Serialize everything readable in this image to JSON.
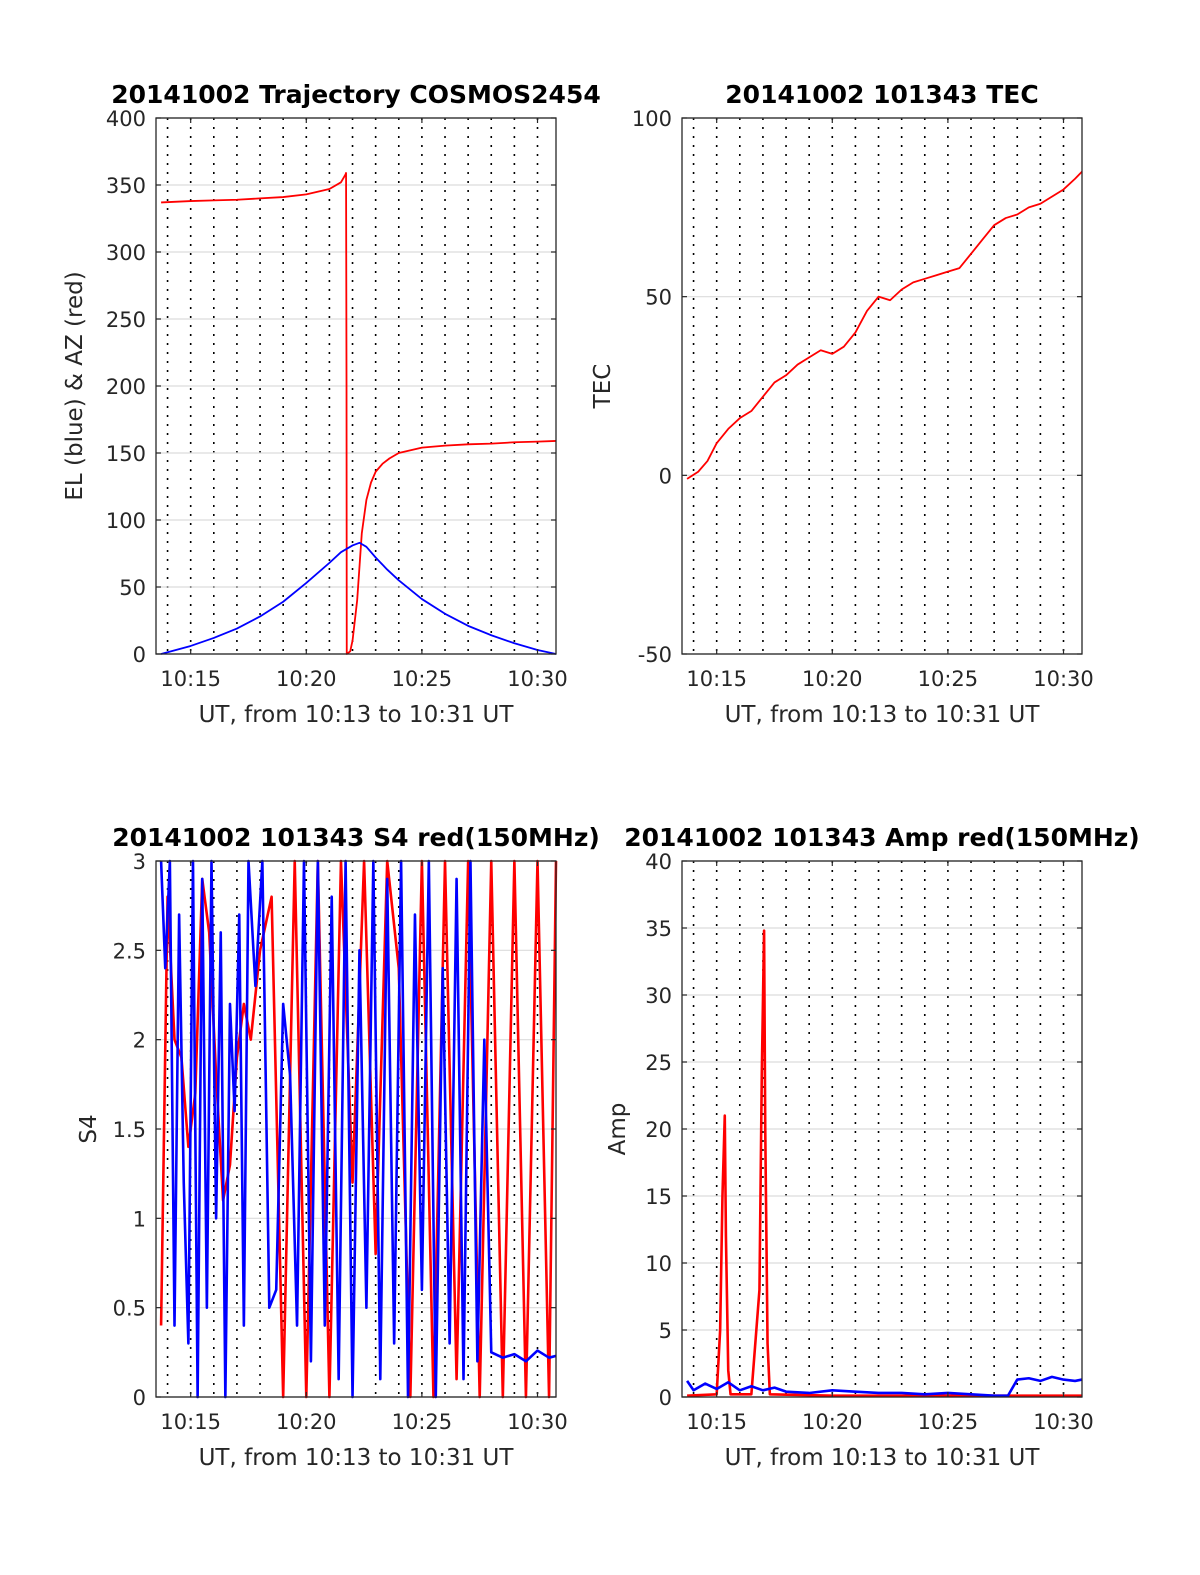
{
  "chart_data": [
    {
      "id": "trajectory",
      "type": "line",
      "title": "20141002 Trajectory COSMOS2454",
      "xlabel": "UT, from 10:13 to 10:31 UT",
      "ylabel": "EL (blue) & AZ (red)",
      "x_unit": "minutes after 10:00 UT",
      "xlim": [
        13.5,
        30.8
      ],
      "ylim": [
        0,
        400
      ],
      "xticks": [
        15,
        20,
        25,
        30
      ],
      "xtick_labels": [
        "10:15",
        "10:20",
        "10:25",
        "10:30"
      ],
      "yticks": [
        0,
        50,
        100,
        150,
        200,
        250,
        300,
        350,
        400
      ],
      "ytick_labels": [
        "0",
        "50",
        "100",
        "150",
        "200",
        "250",
        "300",
        "350",
        "400"
      ],
      "grid": true,
      "series": [
        {
          "name": "AZ",
          "color": "#ff0000",
          "x": [
            13.72,
            15,
            16,
            17,
            18,
            19,
            20,
            21,
            21.5,
            21.7,
            21.72,
            21.74,
            21.75,
            21.9,
            22.0,
            22.2,
            22.4,
            22.6,
            22.8,
            23.0,
            23.3,
            23.6,
            24,
            25,
            26,
            27,
            28,
            29,
            30,
            30.8
          ],
          "y": [
            337,
            338,
            338.5,
            339,
            340,
            341,
            343,
            347,
            352,
            358,
            359,
            200,
            0,
            2,
            10,
            40,
            90,
            115,
            128,
            136,
            142,
            146,
            150,
            154,
            155.5,
            156.5,
            157,
            158,
            158.5,
            159
          ]
        },
        {
          "name": "EL",
          "color": "#0000ff",
          "x": [
            13.72,
            15,
            16,
            17,
            18,
            19,
            20,
            21,
            21.5,
            22.0,
            22.3,
            22.6,
            23,
            23.5,
            24,
            25,
            26,
            27,
            28,
            29,
            30,
            30.8
          ],
          "y": [
            0,
            6,
            12,
            19,
            28,
            39,
            53,
            68,
            76,
            81,
            83,
            80,
            72,
            63,
            55,
            41,
            30,
            21,
            14,
            8,
            3,
            0
          ]
        }
      ]
    },
    {
      "id": "tec",
      "type": "line",
      "title": "20141002 101343 TEC",
      "xlabel": "UT, from 10:13 to 10:31 UT",
      "ylabel": "TEC",
      "x_unit": "minutes after 10:00 UT",
      "xlim": [
        13.5,
        30.8
      ],
      "ylim": [
        -50,
        100
      ],
      "xticks": [
        15,
        20,
        25,
        30
      ],
      "xtick_labels": [
        "10:15",
        "10:20",
        "10:25",
        "10:30"
      ],
      "yticks": [
        -50,
        0,
        50,
        100
      ],
      "ytick_labels": [
        "-50",
        "0",
        "50",
        "100"
      ],
      "grid": true,
      "series": [
        {
          "name": "TEC",
          "color": "#ff0000",
          "x": [
            13.72,
            14.2,
            14.6,
            15.0,
            15.5,
            16.0,
            16.5,
            17.0,
            17.5,
            18.0,
            18.5,
            19.0,
            19.5,
            20.0,
            20.5,
            21.0,
            21.5,
            22.0,
            22.5,
            23.0,
            23.5,
            24.0,
            24.5,
            25.0,
            25.5,
            26.0,
            26.5,
            27.0,
            27.5,
            28.0,
            28.5,
            29.0,
            29.5,
            30.0,
            30.5,
            30.8
          ],
          "y": [
            -1,
            1,
            4,
            9,
            13,
            16,
            18,
            22,
            26,
            28,
            31,
            33,
            35,
            34,
            36,
            40,
            46,
            50,
            49,
            52,
            54,
            55,
            56,
            57,
            58,
            62,
            66,
            70,
            72,
            73,
            75,
            76,
            78,
            80,
            83,
            85
          ]
        }
      ]
    },
    {
      "id": "s4",
      "type": "line",
      "title": "20141002 101343 S4 red(150MHz)",
      "xlabel": "UT, from 10:13 to 10:31 UT",
      "ylabel": "S4",
      "x_unit": "minutes after 10:00 UT",
      "xlim": [
        13.5,
        30.8
      ],
      "ylim": [
        0,
        3
      ],
      "xticks": [
        15,
        20,
        25,
        30
      ],
      "xtick_labels": [
        "10:15",
        "10:20",
        "10:25",
        "10:30"
      ],
      "yticks": [
        0,
        0.5,
        1,
        1.5,
        2,
        2.5,
        3
      ],
      "ytick_labels": [
        "0",
        "0.5",
        "1",
        "1.5",
        "2",
        "2.5",
        "3"
      ],
      "grid": true,
      "series": [
        {
          "name": "red (150MHz)",
          "color": "#ff0000",
          "x": [
            13.72,
            14.0,
            14.3,
            14.6,
            14.9,
            15.2,
            15.5,
            15.8,
            16.1,
            16.4,
            16.7,
            17.0,
            17.3,
            17.6,
            18.0,
            18.5,
            19.0,
            19.5,
            20.0,
            20.5,
            21.0,
            21.5,
            22.0,
            22.5,
            23.0,
            23.5,
            24.0,
            24.5,
            25.0,
            25.5,
            26.0,
            26.5,
            27.0,
            27.5,
            28.0,
            28.5,
            29.0,
            29.5,
            30.0,
            30.5,
            30.8
          ],
          "y": [
            0.4,
            2.8,
            2.0,
            1.9,
            1.4,
            1.7,
            2.9,
            2.6,
            1.8,
            1.1,
            1.3,
            1.9,
            2.2,
            2.0,
            2.5,
            2.8,
            0.0,
            3.0,
            0.0,
            3.0,
            0.0,
            3.0,
            1.2,
            3.0,
            0.8,
            3.0,
            2.4,
            0.0,
            3.0,
            0.0,
            3.0,
            0.1,
            3.0,
            0.0,
            3.0,
            0.0,
            3.0,
            0.0,
            3.0,
            0.0,
            3.0
          ]
        },
        {
          "name": "blue",
          "color": "#0000ff",
          "x": [
            13.72,
            13.9,
            14.1,
            14.3,
            14.5,
            14.7,
            14.9,
            15.1,
            15.3,
            15.5,
            15.7,
            15.9,
            16.1,
            16.3,
            16.5,
            16.7,
            16.9,
            17.1,
            17.3,
            17.5,
            17.8,
            18.1,
            18.4,
            18.7,
            19.0,
            19.3,
            19.6,
            19.9,
            20.2,
            20.5,
            20.8,
            21.1,
            21.4,
            21.7,
            22.0,
            22.3,
            22.6,
            22.9,
            23.2,
            23.5,
            23.8,
            24.1,
            24.4,
            24.7,
            25.0,
            25.3,
            25.6,
            25.9,
            26.2,
            26.5,
            26.8,
            27.1,
            27.4,
            27.7,
            28.0,
            28.5,
            29.0,
            29.5,
            30.0,
            30.5,
            30.8
          ],
          "y": [
            3.0,
            2.4,
            3.0,
            0.4,
            2.7,
            1.2,
            0.3,
            3.0,
            0.0,
            2.9,
            0.5,
            3.0,
            1.0,
            2.6,
            0.0,
            2.2,
            1.6,
            2.7,
            0.4,
            3.0,
            2.3,
            3.0,
            0.5,
            0.6,
            2.2,
            1.8,
            0.4,
            3.0,
            0.2,
            3.0,
            0.4,
            2.8,
            0.1,
            3.0,
            0.0,
            2.5,
            0.5,
            3.0,
            0.1,
            2.9,
            0.3,
            3.0,
            0.0,
            2.7,
            0.6,
            3.0,
            0.0,
            2.4,
            0.3,
            2.9,
            0.1,
            3.0,
            0.2,
            2.0,
            0.25,
            0.22,
            0.24,
            0.2,
            0.26,
            0.22,
            0.23
          ]
        }
      ]
    },
    {
      "id": "amp",
      "type": "line",
      "title": "20141002 101343 Amp red(150MHz)",
      "xlabel": "UT, from 10:13 to 10:31 UT",
      "ylabel": "Amp",
      "x_unit": "minutes after 10:00 UT",
      "xlim": [
        13.5,
        30.8
      ],
      "ylim": [
        0,
        40
      ],
      "xticks": [
        15,
        20,
        25,
        30
      ],
      "xtick_labels": [
        "10:15",
        "10:20",
        "10:25",
        "10:30"
      ],
      "yticks": [
        0,
        5,
        10,
        15,
        20,
        25,
        30,
        35,
        40
      ],
      "ytick_labels": [
        "0",
        "5",
        "10",
        "15",
        "20",
        "25",
        "30",
        "35",
        "40"
      ],
      "grid": true,
      "series": [
        {
          "name": "red (150MHz)",
          "color": "#ff0000",
          "x": [
            13.72,
            15.0,
            15.15,
            15.25,
            15.35,
            15.4,
            15.5,
            15.6,
            16.5,
            16.85,
            16.95,
            17.05,
            17.1,
            17.2,
            17.3,
            20.0,
            25.0,
            30.0,
            30.8
          ],
          "y": [
            0.1,
            0.2,
            5,
            15,
            21,
            12,
            2,
            0.2,
            0.2,
            8,
            24,
            34.8,
            20,
            4,
            0.2,
            0.1,
            0.1,
            0.1,
            0.1
          ]
        },
        {
          "name": "blue",
          "color": "#0000ff",
          "x": [
            13.72,
            14.0,
            14.5,
            15.0,
            15.5,
            16.0,
            16.5,
            17.0,
            17.5,
            18.0,
            19.0,
            20.0,
            21.0,
            22.0,
            23.0,
            24.0,
            25.0,
            26.0,
            27.0,
            27.6,
            28.0,
            28.5,
            29.0,
            29.5,
            30.0,
            30.5,
            30.8
          ],
          "y": [
            1.2,
            0.5,
            1.0,
            0.6,
            1.1,
            0.5,
            0.8,
            0.5,
            0.7,
            0.4,
            0.3,
            0.5,
            0.4,
            0.3,
            0.3,
            0.2,
            0.3,
            0.2,
            0.1,
            0.1,
            1.3,
            1.4,
            1.2,
            1.5,
            1.3,
            1.2,
            1.3
          ]
        }
      ]
    }
  ]
}
